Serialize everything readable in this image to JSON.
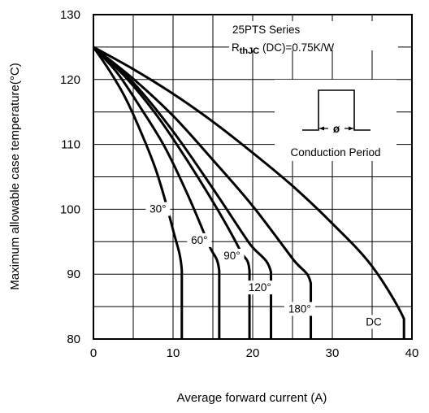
{
  "chart_data": {
    "type": "line",
    "title": "",
    "xlabel": "Average forward current (A)",
    "ylabel": "Maximum allowable case temperature(°C)",
    "xlim": [
      0,
      40
    ],
    "ylim": [
      80,
      130
    ],
    "x_ticks": [
      "0",
      "10",
      "20",
      "30",
      "40"
    ],
    "y_ticks": [
      "80",
      "90",
      "100",
      "110",
      "120",
      "130"
    ],
    "x_tick_values": [
      0,
      10,
      20,
      30,
      40
    ],
    "y_tick_values": [
      80,
      90,
      100,
      110,
      120,
      130
    ],
    "x_minor_step": 5,
    "y_minor_step": 5,
    "grid": true,
    "annotations": {
      "series_name": "25PTS Series",
      "rth_prefix": "R",
      "rth_subscript": "thJC",
      "rth_suffix": " (DC)=0.75K/W",
      "conduction_symbol": "ø",
      "conduction_label": "Conduction Period"
    },
    "series": [
      {
        "label": "30°",
        "x": [
          0,
          2,
          4,
          6,
          8,
          10,
          11.1,
          11.1
        ],
        "y": [
          125,
          121.4,
          117.2,
          111.8,
          105.5,
          96.8,
          90.6,
          80
        ]
      },
      {
        "label": "60°",
        "x": [
          0,
          3,
          6,
          9,
          12,
          14.5,
          15.8,
          15.8
        ],
        "y": [
          125,
          121,
          115.5,
          109.5,
          101.8,
          94.5,
          90.5,
          80
        ]
      },
      {
        "label": "90°",
        "x": [
          0,
          4,
          8,
          12,
          16,
          18.5,
          19.6,
          19.6
        ],
        "y": [
          125,
          120.4,
          114.4,
          107.1,
          99.1,
          93.5,
          90.5,
          80
        ]
      },
      {
        "label": "120°",
        "x": [
          0,
          5,
          10,
          15,
          19.5,
          22.3,
          22.3
        ],
        "y": [
          125,
          119.5,
          112,
          103.2,
          94.9,
          90.3,
          80
        ]
      },
      {
        "label": "180°",
        "x": [
          0,
          5,
          10,
          15,
          20,
          25,
          27.3,
          27.3
        ],
        "y": [
          125,
          120.1,
          114.4,
          107.6,
          100.5,
          92.4,
          88.6,
          80
        ]
      },
      {
        "label": "DC",
        "x": [
          0,
          5,
          10,
          15,
          20,
          25,
          30,
          35,
          39,
          39
        ],
        "y": [
          125,
          121.6,
          117.8,
          113.5,
          108.7,
          103.6,
          97.8,
          91.2,
          83.1,
          80
        ]
      }
    ]
  }
}
